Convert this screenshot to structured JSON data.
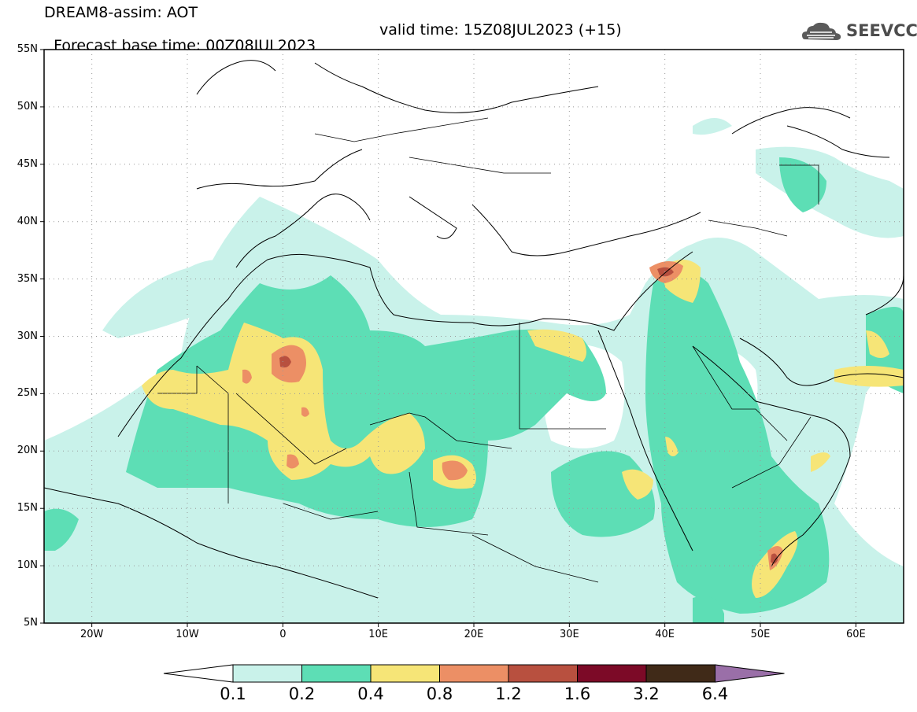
{
  "header": {
    "title": "DREAM8-assim: AOT",
    "base_time": "Forecast base time: 00Z08JUL2023",
    "valid_time": "valid time: 15Z08JUL2023 (+15)"
  },
  "logo": {
    "text": "SEEVCCC",
    "icon": "cloud-logo-icon"
  },
  "map": {
    "lon_range": [
      -25,
      65
    ],
    "lat_range": [
      5,
      55
    ],
    "lat_labels": [
      "55N",
      "50N",
      "45N",
      "40N",
      "35N",
      "30N",
      "25N",
      "20N",
      "15N",
      "10N",
      "5N"
    ],
    "lon_labels": [
      "20W",
      "10W",
      "0",
      "10E",
      "20E",
      "30E",
      "40E",
      "50E",
      "60E"
    ],
    "grid": "dotted",
    "variable": "AOT"
  },
  "colorbar": {
    "labels": [
      "0.1",
      "0.2",
      "0.4",
      "0.8",
      "1.2",
      "1.6",
      "3.2",
      "6.4"
    ],
    "colors": [
      "#c9f2ea",
      "#5ddeb5",
      "#f6e577",
      "#ec8f65",
      "#b8503f",
      "#7c0a27",
      "#402a18",
      "#9a6fa8"
    ],
    "under_color": "#ffffff"
  }
}
